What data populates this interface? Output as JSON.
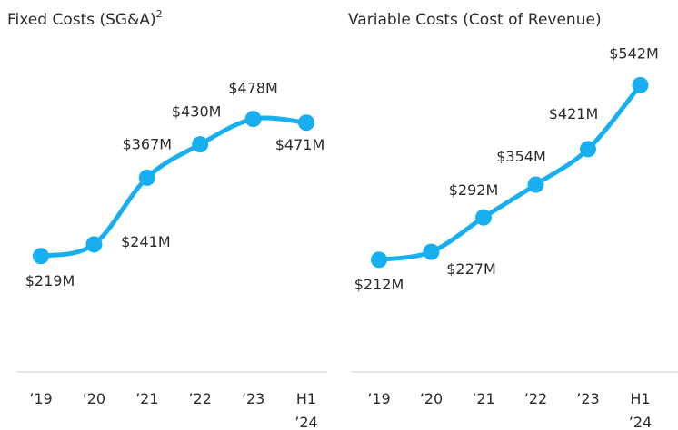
{
  "chart_data": [
    {
      "type": "line",
      "title": "Fixed Costs (SG&A)",
      "title_note": "2",
      "categories": [
        "’19",
        "’20",
        "’21",
        "’22",
        "’23",
        "H1 ’24"
      ],
      "values": [
        219,
        241,
        367,
        430,
        478,
        471
      ],
      "value_labels": [
        "$219M",
        "$241M",
        "$367M",
        "$430M",
        "$478M",
        "$471M"
      ],
      "color": "#17aff0",
      "ylim": [
        0,
        600
      ]
    },
    {
      "type": "line",
      "title": "Variable Costs (Cost of Revenue)",
      "categories": [
        "’19",
        "’20",
        "’21",
        "’22",
        "’23",
        "H1 ’24"
      ],
      "values": [
        212,
        227,
        292,
        354,
        421,
        542
      ],
      "value_labels": [
        "$212M",
        "$227M",
        "$292M",
        "$354M",
        "$421M",
        "$542M"
      ],
      "color": "#17aff0",
      "ylim": [
        0,
        600
      ]
    }
  ]
}
